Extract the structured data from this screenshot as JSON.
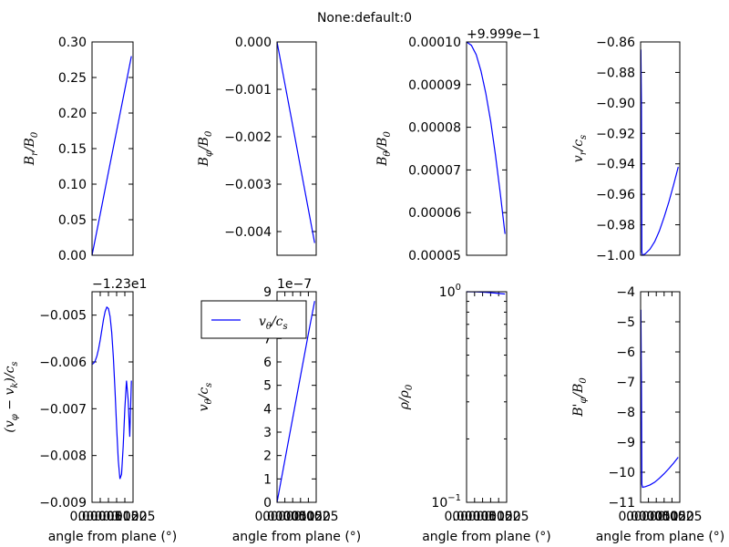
{
  "figure": {
    "suptitle": "None:default:0",
    "legend_label": "v_θ/c_s",
    "line_color": "#0000ff"
  },
  "chart_data": [
    {
      "type": "line",
      "ylabel": "B_r/B_0",
      "xlabel": "",
      "yticks": [
        "0.00",
        "0.05",
        "0.10",
        "0.15",
        "0.20",
        "0.25",
        "0.30"
      ],
      "ylim": [
        0,
        0.3
      ],
      "xlim": [
        0,
        0.0025
      ],
      "xticks": [],
      "yscale": "linear",
      "offset": "",
      "x": [
        0,
        0.0005,
        0.001,
        0.0015,
        0.002,
        0.0024
      ],
      "y": [
        0,
        0.058,
        0.117,
        0.175,
        0.233,
        0.28
      ]
    },
    {
      "type": "line",
      "ylabel": "B_φ/B_0",
      "xlabel": "",
      "yticks": [
        "0.000",
        "-0.001",
        "-0.002",
        "-0.003",
        "-0.004"
      ],
      "ylim": [
        -0.0045,
        0
      ],
      "xlim": [
        0,
        0.0025
      ],
      "xticks": [],
      "yscale": "linear",
      "offset": "",
      "x": [
        0,
        0.0005,
        0.001,
        0.0015,
        0.002,
        0.0024
      ],
      "y": [
        0,
        -0.00088,
        -0.00176,
        -0.00265,
        -0.00353,
        -0.00424
      ]
    },
    {
      "type": "line",
      "ylabel": "B_θ/B_0",
      "xlabel": "",
      "yticks": [
        "0.00005",
        "0.00006",
        "0.00007",
        "0.00008",
        "0.00009",
        "0.00010"
      ],
      "ylim": [
        5e-05,
        0.0001
      ],
      "xlim": [
        0,
        0.0025
      ],
      "xticks": [],
      "yscale": "linear",
      "offset": "+9.999e−1",
      "x": [
        0,
        0.0003,
        0.0006,
        0.0009,
        0.0012,
        0.0015,
        0.0018,
        0.0021,
        0.0024
      ],
      "y": [
        0.0001,
        9.92e-05,
        9.7e-05,
        9.32e-05,
        8.8e-05,
        8.15e-05,
        7.35e-05,
        6.45e-05,
        5.5e-05
      ]
    },
    {
      "type": "line",
      "ylabel": "v_r/c_s",
      "xlabel": "",
      "yticks": [
        "-0.86",
        "-0.88",
        "-0.90",
        "-0.92",
        "-0.94",
        "-0.96",
        "-0.98",
        "-1.00"
      ],
      "ylim": [
        -1.0,
        -0.86
      ],
      "xlim": [
        0,
        0.0025
      ],
      "xticks": [],
      "yscale": "linear",
      "offset": "",
      "x": [
        2e-05,
        5e-05,
        8e-05,
        0.00012,
        0.0003,
        0.0006,
        0.0009,
        0.0012,
        0.0015,
        0.0018,
        0.0021,
        0.0024
      ],
      "y": [
        -0.865,
        -0.9,
        -0.998,
        -1.0,
        -0.999,
        -0.996,
        -0.991,
        -0.984,
        -0.975,
        -0.965,
        -0.954,
        -0.942
      ]
    },
    {
      "type": "line",
      "ylabel": "(v_φ − v_k)/c_s",
      "xlabel": "angle from plane (°)",
      "yticks": [
        "-0.005",
        "-0.006",
        "-0.007",
        "-0.008",
        "-0.009"
      ],
      "ylim": [
        -0.009,
        -0.0045
      ],
      "xlim": [
        0,
        0.0025
      ],
      "yscale": "linear",
      "xticks": [
        "0.0000",
        "0.0005",
        "0.0010",
        "0.0015",
        "0.0020",
        "0.0025"
      ],
      "offset": "−1.23e1",
      "x": [
        0,
        0.0001,
        0.0002,
        0.0003,
        0.0004,
        0.0005,
        0.0006,
        0.0007,
        0.0008,
        0.0009,
        0.001,
        0.0011,
        0.0012,
        0.0013,
        0.0014,
        0.0015,
        0.0016,
        0.0017,
        0.0018,
        0.0019,
        0.002,
        0.0021,
        0.0022,
        0.0023,
        0.0024
      ],
      "y": [
        -0.00605,
        -0.00603,
        -0.00597,
        -0.00587,
        -0.00572,
        -0.00553,
        -0.00531,
        -0.00509,
        -0.00492,
        -0.00483,
        -0.00486,
        -0.00503,
        -0.00537,
        -0.0059,
        -0.0066,
        -0.0074,
        -0.0081,
        -0.0085,
        -0.0084,
        -0.0078,
        -0.007,
        -0.0064,
        -0.0068,
        -0.0076,
        -0.0064
      ]
    },
    {
      "type": "line",
      "ylabel": "v_θ/c_s",
      "xlabel": "angle from plane (°)",
      "yticks": [
        "0",
        "1",
        "2",
        "3",
        "4",
        "5",
        "6",
        "7",
        "8",
        "9"
      ],
      "ylim": [
        0,
        9
      ],
      "xlim": [
        0,
        0.0025
      ],
      "yscale": "linear",
      "xticks": [
        "0.0000",
        "0.0005",
        "0.0010",
        "0.0015",
        "0.0020",
        "0.0025"
      ],
      "offset": "1e−7",
      "x": [
        0,
        0.0005,
        0.001,
        0.0015,
        0.002,
        0.0024
      ],
      "y": [
        0,
        1.8,
        3.6,
        5.4,
        7.2,
        8.6
      ]
    },
    {
      "type": "line",
      "ylabel": "ρ/ρ_0",
      "xlabel": "angle from plane (°)",
      "yticks": [
        "10^-1",
        "10^0"
      ],
      "ylim": [
        0.1,
        1
      ],
      "xlim": [
        0,
        0.0025
      ],
      "yscale": "log",
      "xticks": [
        "0.0000",
        "0.0005",
        "0.0010",
        "0.0015",
        "0.0020",
        "0.0025"
      ],
      "offset": "",
      "x": [
        0,
        0.0006,
        0.0012,
        0.0018,
        0.0024
      ],
      "y": [
        1.0,
        0.998,
        0.993,
        0.985,
        0.975
      ]
    },
    {
      "type": "line",
      "ylabel": "B'_φ/B_0",
      "xlabel": "angle from plane (°)",
      "yticks": [
        "-4",
        "-5",
        "-6",
        "-7",
        "-8",
        "-9",
        "-10",
        "-11"
      ],
      "ylim": [
        -11,
        -4
      ],
      "xlim": [
        0,
        0.0025
      ],
      "yscale": "linear",
      "xticks": [
        "0.0000",
        "0.0005",
        "0.0010",
        "0.0015",
        "0.0020",
        "0.0025"
      ],
      "offset": "",
      "x": [
        2e-05,
        5e-05,
        8e-05,
        0.00012,
        0.0003,
        0.0006,
        0.0009,
        0.0012,
        0.0015,
        0.0018,
        0.0021,
        0.0024
      ],
      "y": [
        -4.6,
        -7.0,
        -10.4,
        -10.5,
        -10.48,
        -10.42,
        -10.33,
        -10.2,
        -10.05,
        -9.88,
        -9.7,
        -9.5
      ]
    }
  ]
}
